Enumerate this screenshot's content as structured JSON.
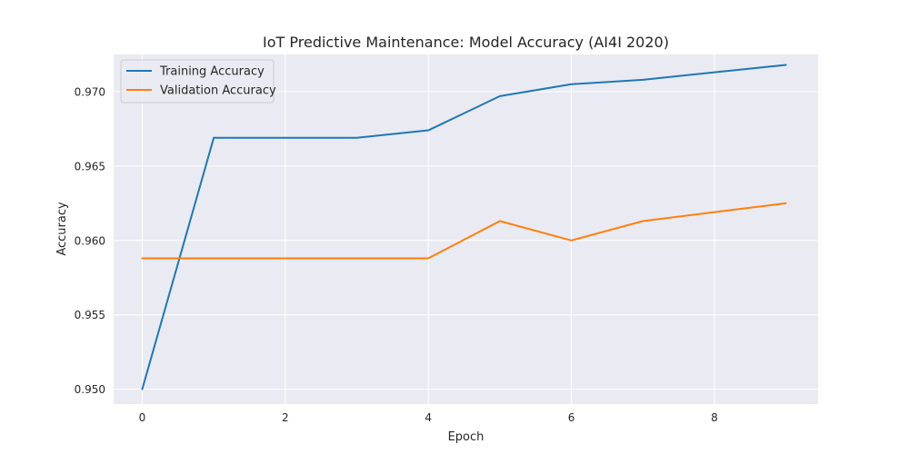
{
  "colors": {
    "plot_background": "#eaeaf2",
    "grid": "#ffffff",
    "training": "#1f77b4",
    "validation": "#ff7f0e"
  },
  "chart_data": {
    "type": "line",
    "title": "IoT Predictive Maintenance: Model Accuracy (AI4I 2020)",
    "xlabel": "Epoch",
    "ylabel": "Accuracy",
    "x": [
      0,
      1,
      2,
      3,
      4,
      5,
      6,
      7,
      8,
      9
    ],
    "xlim": [
      -0.4,
      9.45
    ],
    "ylim": [
      0.949,
      0.9725
    ],
    "xticks": [
      0,
      2,
      4,
      6,
      8
    ],
    "xtick_labels": [
      "0",
      "2",
      "4",
      "6",
      "8"
    ],
    "yticks": [
      0.95,
      0.955,
      0.96,
      0.965,
      0.97
    ],
    "ytick_labels": [
      "0.950",
      "0.955",
      "0.960",
      "0.965",
      "0.970"
    ],
    "grid": true,
    "legend_position": "top-left",
    "series": [
      {
        "name": "Training Accuracy",
        "color": "#1f77b4",
        "values": [
          0.95,
          0.9669,
          0.9669,
          0.9669,
          0.9674,
          0.9697,
          0.9705,
          0.9708,
          0.9713,
          0.9718
        ]
      },
      {
        "name": "Validation Accuracy",
        "color": "#ff7f0e",
        "values": [
          0.9588,
          0.9588,
          0.9588,
          0.9588,
          0.9588,
          0.9613,
          0.96,
          0.9613,
          0.9619,
          0.9625
        ]
      }
    ]
  }
}
